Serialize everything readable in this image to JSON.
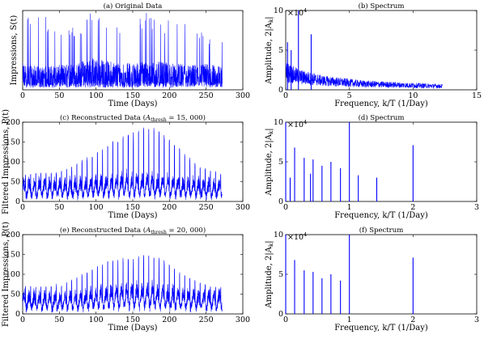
{
  "figure_title": "",
  "chart_data": [
    {
      "id": "original",
      "type": "line",
      "title": "(a) Original Data",
      "xlabel": "Time (Days)",
      "ylabel": "Impressions, S(t)",
      "xlim": [
        0,
        300
      ],
      "ylim": [
        0,
        180
      ],
      "xticks": [
        0,
        50,
        100,
        150,
        200,
        250,
        300
      ],
      "yticks": [],
      "series": [
        {
          "values_envelope": {
            "x": [
              0,
              25,
              50,
              75,
              90,
              110,
              130,
              150,
              170,
              190,
              210,
              230,
              250,
              272
            ],
            "mean": [
              40,
              35,
              38,
              40,
              50,
              45,
              42,
              40,
              45,
              42,
              40,
              38,
              40,
              35
            ],
            "max": [
              180,
              180,
              150,
              160,
              180,
              180,
              170,
              180,
              180,
              170,
              160,
              150,
              140,
              110
            ]
          }
        }
      ],
      "grid": false
    },
    {
      "id": "spectrum_b",
      "type": "line",
      "title": "(b) Spectrum",
      "xlabel": "Frequency, k/T (1/Day)",
      "ylabel": "Amplitude, 2|A_k|",
      "scale_label": "×10^4",
      "xlim": [
        0,
        15
      ],
      "ylim": [
        0,
        10
      ],
      "xticks": [
        0,
        5,
        10,
        15
      ],
      "yticks": [
        0,
        5,
        10
      ],
      "peaks": [
        {
          "x": 1.0,
          "y": 10.0
        },
        {
          "x": 2.0,
          "y": 7.0
        },
        {
          "x": 0.14,
          "y": 6.0
        },
        {
          "x": 0.43,
          "y": 5.0
        }
      ],
      "noise_floor": {
        "x": [
          0,
          1,
          3,
          6,
          9,
          12.3
        ],
        "y": [
          3.0,
          2.2,
          1.5,
          1.0,
          0.8,
          0.6
        ]
      },
      "grid": false
    },
    {
      "id": "recon_c",
      "type": "line",
      "title": "(c) Reconstructed Data (A_thresh = 15, 000)",
      "title_main": "(c) Reconstructed Data (",
      "title_sym": "A",
      "title_sub": "thresh",
      "title_tail": " = 15, 000)",
      "xlabel": "Time (Days)",
      "ylabel": "Filtered Impressions, P(t)",
      "xlim": [
        0,
        300
      ],
      "ylim": [
        0,
        200
      ],
      "xticks": [
        0,
        50,
        100,
        150,
        200,
        250,
        300
      ],
      "yticks": [
        0,
        50,
        100,
        150,
        200
      ],
      "series": [
        {
          "values_envelope": {
            "x": [
              0,
              50,
              90,
              110,
              130,
              150,
              170,
              190,
              210,
              240,
              272
            ],
            "center": [
              40,
              40,
              42,
              45,
              48,
              50,
              48,
              45,
              42,
              40,
              38
            ],
            "spike_max": [
              70,
              75,
              110,
              140,
              160,
              175,
              195,
              175,
              140,
              90,
              70
            ]
          }
        }
      ],
      "grid": false
    },
    {
      "id": "spectrum_d",
      "type": "bar",
      "title": "(d) Spectrum",
      "xlabel": "Frequency, k/T (1/Day)",
      "ylabel": "Amplitude, 2|A_k|",
      "scale_label": "×10^4",
      "xlim": [
        0,
        3
      ],
      "ylim": [
        0,
        10
      ],
      "xticks": [
        0,
        1,
        2,
        3
      ],
      "yticks": [
        0,
        5,
        10
      ],
      "stems": [
        {
          "x": 0.0,
          "y": 10.0
        },
        {
          "x": 0.07,
          "y": 3.0
        },
        {
          "x": 0.14,
          "y": 6.8
        },
        {
          "x": 0.29,
          "y": 5.5
        },
        {
          "x": 0.39,
          "y": 3.5
        },
        {
          "x": 0.43,
          "y": 5.3
        },
        {
          "x": 0.57,
          "y": 4.5
        },
        {
          "x": 0.71,
          "y": 5.0
        },
        {
          "x": 0.86,
          "y": 4.2
        },
        {
          "x": 1.0,
          "y": 10.0
        },
        {
          "x": 1.14,
          "y": 3.3
        },
        {
          "x": 1.43,
          "y": 3.0
        },
        {
          "x": 2.0,
          "y": 7.1
        }
      ],
      "grid": false
    },
    {
      "id": "recon_e",
      "type": "line",
      "title": "(e) Reconstructed Data (A_thresh = 20, 000)",
      "title_main": "(e) Reconstructed Data (",
      "title_sym": "A",
      "title_sub": "thresh",
      "title_tail": " = 20, 000)",
      "xlabel": "Time (Days)",
      "ylabel": "Filtered Impressions, P(t)",
      "xlim": [
        0,
        300
      ],
      "ylim": [
        0,
        200
      ],
      "xticks": [
        0,
        50,
        100,
        150,
        200,
        250,
        300
      ],
      "yticks": [
        0,
        50,
        100,
        150,
        200
      ],
      "series": [
        {
          "values_envelope": {
            "x": [
              0,
              50,
              90,
              110,
              130,
              150,
              170,
              190,
              210,
              240,
              272
            ],
            "center": [
              40,
              38,
              42,
              48,
              52,
              55,
              55,
              50,
              45,
              42,
              40
            ],
            "spike_max": [
              70,
              70,
              110,
              130,
              140,
              145,
              150,
              140,
              110,
              80,
              65
            ]
          }
        }
      ],
      "grid": false
    },
    {
      "id": "spectrum_f",
      "type": "bar",
      "title": "(f) Spectrum",
      "xlabel": "Frequency, k/T (1/Day)",
      "ylabel": "Amplitude, 2|A_k|",
      "scale_label": "×10^4",
      "xlim": [
        0,
        3
      ],
      "ylim": [
        0,
        10
      ],
      "xticks": [
        0,
        1,
        2,
        3
      ],
      "yticks": [
        0,
        5,
        10
      ],
      "stems": [
        {
          "x": 0.0,
          "y": 10.0
        },
        {
          "x": 0.14,
          "y": 6.8
        },
        {
          "x": 0.29,
          "y": 5.5
        },
        {
          "x": 0.43,
          "y": 5.3
        },
        {
          "x": 0.57,
          "y": 4.5
        },
        {
          "x": 0.71,
          "y": 5.0
        },
        {
          "x": 0.86,
          "y": 4.2
        },
        {
          "x": 1.0,
          "y": 10.0
        },
        {
          "x": 2.0,
          "y": 7.1
        }
      ],
      "grid": false
    }
  ]
}
